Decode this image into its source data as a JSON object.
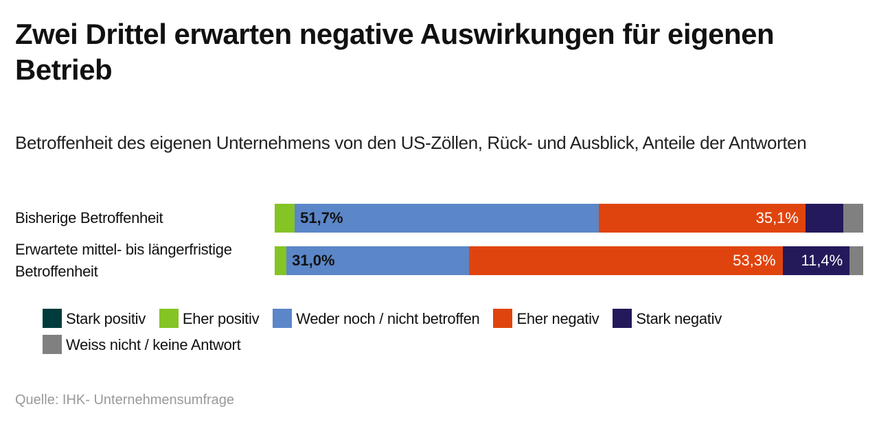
{
  "chart_data": {
    "type": "bar",
    "orientation": "horizontal",
    "stacked": true,
    "title": "Zwei Drittel erwarten negative Auswirkungen für eigenen Betrieb",
    "subtitle": "Betroffenheit des eigenen Unternehmens von den US-Zöllen, Rück- und Ausblick, Anteile der Antworten",
    "categories": [
      "Bisherige Betroffenheit",
      "Erwartete mittel- bis längerfristige Betroffenheit"
    ],
    "series": [
      {
        "name": "Stark positiv",
        "color": "#003c3c",
        "values": [
          0,
          0
        ],
        "labels": [
          "",
          ""
        ],
        "label_color": "#fff"
      },
      {
        "name": "Eher positiv",
        "color": "#84c425",
        "values": [
          3.4,
          2.0
        ],
        "labels": [
          "",
          ""
        ],
        "label_color": "#111"
      },
      {
        "name": "Weder noch / nicht betroffen",
        "color": "#5b86c8",
        "values": [
          51.7,
          31.0
        ],
        "labels": [
          "51,7%",
          "31,0%"
        ],
        "label_color": "#111",
        "label_align": "left"
      },
      {
        "name": "Eher negativ",
        "color": "#e0440e",
        "values": [
          35.1,
          53.3
        ],
        "labels": [
          "35,1%",
          "53,3%"
        ],
        "label_color": "#fff",
        "label_align": "right"
      },
      {
        "name": "Stark negativ",
        "color": "#24195a",
        "values": [
          6.4,
          11.4
        ],
        "labels": [
          "",
          "11,4%"
        ],
        "label_color": "#fff",
        "label_align": "right"
      },
      {
        "name": "Weiss nicht / keine Antwort",
        "color": "#808080",
        "values": [
          3.4,
          2.3
        ],
        "labels": [
          "",
          ""
        ],
        "label_color": "#fff"
      }
    ],
    "xlim": [
      0,
      100
    ],
    "legend": "bottom",
    "source": "Quelle: IHK- Unternehmensumfrage"
  }
}
